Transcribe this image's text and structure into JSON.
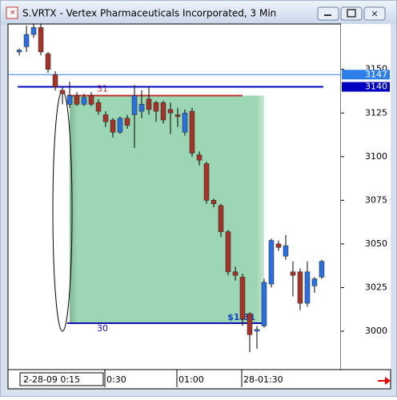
{
  "window": {
    "title": "S.VRTX - Vertex Pharmaceuticals Incorporated, 3 Min"
  },
  "chart_data": {
    "type": "candlestick",
    "open": [
      3160,
      3163,
      3170,
      3174,
      3159,
      3147,
      3138,
      3130,
      3135,
      3130,
      3135,
      3131,
      3124,
      3121,
      3114,
      3122,
      3124,
      3126,
      3133,
      3131,
      3131,
      3127,
      3124,
      3114,
      3126,
      3101,
      3096,
      3075,
      3072,
      3057,
      3034,
      3031,
      3010,
      3000,
      3003,
      3027,
      3050,
      3043,
      3034,
      3034,
      3016,
      3026,
      3031
    ],
    "high": [
      3162,
      3175,
      3176,
      3176,
      3160,
      3149,
      3140,
      3143,
      3137,
      3136,
      3137,
      3133,
      3126,
      3122,
      3123,
      3124,
      3141,
      3138,
      3140,
      3132,
      3132,
      3131,
      3128,
      3127,
      3128,
      3103,
      3097,
      3076,
      3073,
      3058,
      3037,
      3033,
      3011,
      3003,
      3030,
      3053,
      3052,
      3055,
      3040,
      3036,
      3040,
      3031,
      3041
    ],
    "low": [
      3158,
      3160,
      3168,
      3158,
      3148,
      3138,
      3130,
      3128,
      3129,
      3129,
      3129,
      3124,
      3117,
      3111,
      3113,
      3116,
      3105,
      3122,
      3124,
      3120,
      3119,
      3113,
      3117,
      3112,
      3100,
      3095,
      3073,
      3071,
      3054,
      3032,
      3029,
      3003,
      2988,
      2990,
      3002,
      3025,
      3046,
      3041,
      3020,
      3012,
      3014,
      3022,
      3030
    ],
    "close": [
      3161,
      3170,
      3174,
      3160,
      3150,
      3140,
      3136,
      3135,
      3130,
      3134,
      3130,
      3126,
      3120,
      3114,
      3122,
      3118,
      3135,
      3130,
      3127,
      3126,
      3121,
      3125,
      3123,
      3125,
      3102,
      3098,
      3075,
      3073,
      3057,
      3034,
      3032,
      3007,
      2998,
      3001,
      3028,
      3052,
      3048,
      3049,
      3032,
      3016,
      3034,
      3030,
      3040
    ],
    "up_color": "#2a6fdb",
    "down_color": "#a3342a",
    "xlim": [
      -1.56,
      44.67
    ],
    "xticks": [
      {
        "value": 12,
        "label": "0:30"
      },
      {
        "value": 22,
        "label": "01:00"
      },
      {
        "value": 31,
        "label": "28-01:30"
      }
    ],
    "start_label": "2-28-09  0:15",
    "ylim": [
      2978,
      3176
    ],
    "yticks": [
      3000,
      3025,
      3050,
      3075,
      3100,
      3125,
      3150
    ],
    "price_lines": [
      {
        "value": 3147,
        "label": "3147",
        "color": "#2f7fe8"
      },
      {
        "value": 3140,
        "label": "3140",
        "color": "#0000c0"
      }
    ],
    "zone": {
      "top": 3135,
      "bottom": 3004.6,
      "start": 7,
      "end": 34,
      "top_label": "31",
      "bottom_label": "30",
      "amount_label": "$1.31"
    }
  }
}
